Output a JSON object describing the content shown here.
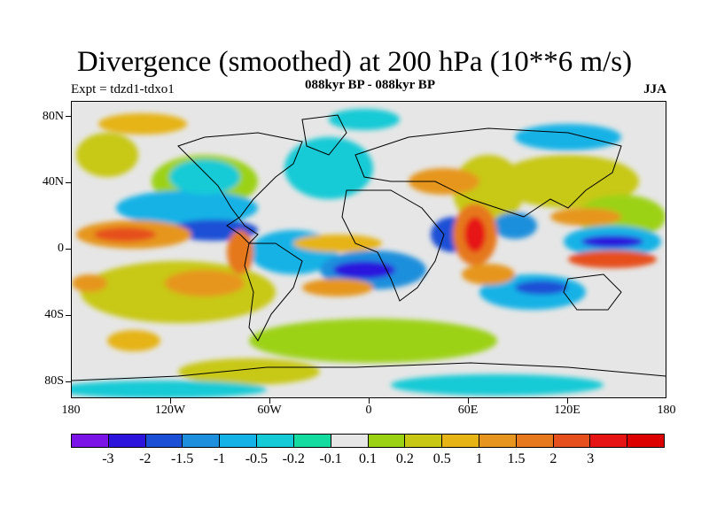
{
  "header": {
    "title": "Divergence (smoothed) at 200 hPa (10**6 m/s)",
    "experiment": "Expt = tdzd1-tdxo1",
    "period": "088kyr BP - 088kyr BP",
    "season": "JJA"
  },
  "axes": {
    "lat_labels": [
      "80N",
      "40N",
      "0",
      "40S",
      "80S"
    ],
    "lon_labels": [
      "180",
      "120W",
      "60W",
      "0",
      "60E",
      "120E",
      "180"
    ]
  },
  "colorbar": {
    "colors": [
      "#7b14e6",
      "#2c14dc",
      "#1a4fd6",
      "#1e8fdc",
      "#14b2e6",
      "#14cad6",
      "#14dca0",
      "#e6e6e6",
      "#9cd214",
      "#c8c814",
      "#e6b414",
      "#e6961e",
      "#e6781e",
      "#e6501e",
      "#e61414",
      "#dc0000"
    ],
    "labels": [
      "-3",
      "-2",
      "-1.5",
      "-1",
      "-0.5",
      "-0.2",
      "-0.1",
      "0.1",
      "0.2",
      "0.5",
      "1",
      "1.5",
      "2",
      "3"
    ]
  }
}
